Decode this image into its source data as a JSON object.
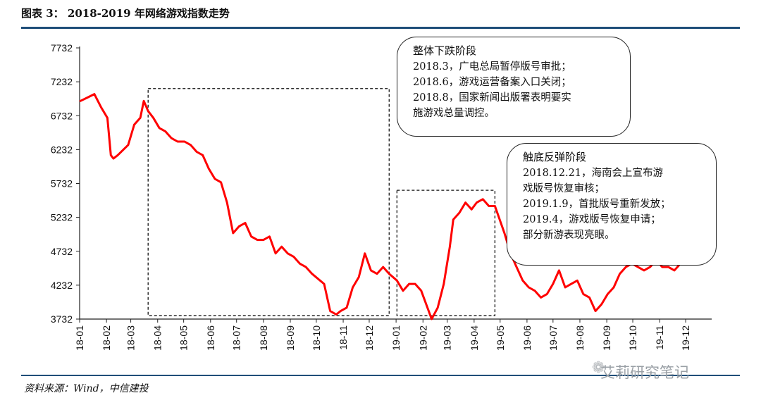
{
  "title": "图表 3：   2018-2019 年网络游戏指数走势",
  "source": "资料来源：Wind，中信建投",
  "watermark": "艾莉研究笔记",
  "colors": {
    "line": "#ff0000",
    "axis": "#222222",
    "rule": "#1f4e79"
  },
  "annotations": [
    {
      "title": "整体下跌阶段",
      "lines": [
        "2018.3，广电总局暂停版号审批；",
        "2018.6，游戏运营备案入口关闭；",
        "2018.8，国家新闻出版署表明要实",
        "施游戏总量调控。"
      ]
    },
    {
      "title": "触底反弹阶段",
      "lines": [
        "2018.12.21，海南会上宣布游",
        "戏版号恢复审核；",
        "2019.1.9，首批版号重新发放；",
        "2019.4，游戏版号恢复申请；",
        "部分新游表现亮眼。"
      ]
    }
  ],
  "chart_data": {
    "type": "line",
    "title": "",
    "xlabel": "",
    "ylabel": "",
    "ylim": [
      3732,
      7732
    ],
    "yticks": [
      3732,
      4232,
      4732,
      5232,
      5732,
      6232,
      6732,
      7232,
      7732
    ],
    "xticks": [
      "18-01",
      "18-02",
      "18-03",
      "18-04",
      "18-05",
      "18-06",
      "18-07",
      "18-08",
      "18-09",
      "18-10",
      "18-11",
      "18-12",
      "19-01",
      "19-02",
      "19-03",
      "19-04",
      "19-05",
      "19-06",
      "19-07",
      "19-08",
      "19-09",
      "19-10",
      "19-11",
      "19-12"
    ],
    "series": [
      {
        "name": "",
        "x": [
          "2018-01-02",
          "2018-01-10",
          "2018-01-18",
          "2018-01-26",
          "2018-02-02",
          "2018-02-06",
          "2018-02-09",
          "2018-02-14",
          "2018-02-26",
          "2018-03-05",
          "2018-03-12",
          "2018-03-16",
          "2018-03-21",
          "2018-03-27",
          "2018-04-03",
          "2018-04-10",
          "2018-04-17",
          "2018-04-24",
          "2018-05-02",
          "2018-05-09",
          "2018-05-16",
          "2018-05-23",
          "2018-05-30",
          "2018-06-06",
          "2018-06-13",
          "2018-06-20",
          "2018-06-27",
          "2018-07-04",
          "2018-07-11",
          "2018-07-18",
          "2018-07-25",
          "2018-08-01",
          "2018-08-08",
          "2018-08-15",
          "2018-08-22",
          "2018-08-29",
          "2018-09-05",
          "2018-09-12",
          "2018-09-19",
          "2018-09-26",
          "2018-10-10",
          "2018-10-17",
          "2018-10-24",
          "2018-10-29",
          "2018-11-05",
          "2018-11-12",
          "2018-11-19",
          "2018-11-26",
          "2018-12-03",
          "2018-12-10",
          "2018-12-17",
          "2018-12-24",
          "2019-01-02",
          "2019-01-09",
          "2019-01-16",
          "2019-01-23",
          "2019-01-30",
          "2019-02-11",
          "2019-02-18",
          "2019-02-25",
          "2019-03-04",
          "2019-03-08",
          "2019-03-15",
          "2019-03-22",
          "2019-03-29",
          "2019-04-04",
          "2019-04-11",
          "2019-04-18",
          "2019-04-25",
          "2019-05-06",
          "2019-05-13",
          "2019-05-20",
          "2019-05-27",
          "2019-06-03",
          "2019-06-10",
          "2019-06-17",
          "2019-06-24",
          "2019-07-01",
          "2019-07-08",
          "2019-07-15",
          "2019-07-22",
          "2019-07-29",
          "2019-08-05",
          "2019-08-12",
          "2019-08-19",
          "2019-08-26",
          "2019-09-02",
          "2019-09-09",
          "2019-09-16",
          "2019-09-23",
          "2019-09-30",
          "2019-10-14",
          "2019-10-21",
          "2019-10-28",
          "2019-11-04",
          "2019-11-11",
          "2019-11-18",
          "2019-11-25",
          "2019-12-02",
          "2019-12-09",
          "2019-12-16",
          "2019-12-23",
          "2019-12-31"
        ],
        "values": [
          6950,
          7000,
          7050,
          6850,
          6700,
          6150,
          6100,
          6150,
          6300,
          6600,
          6700,
          6950,
          6800,
          6700,
          6550,
          6500,
          6400,
          6350,
          6350,
          6300,
          6200,
          6150,
          5950,
          5800,
          5750,
          5450,
          5000,
          5100,
          5150,
          4950,
          4900,
          4900,
          4950,
          4700,
          4800,
          4700,
          4650,
          4550,
          4500,
          4400,
          4250,
          3850,
          3800,
          3850,
          3900,
          4200,
          4350,
          4700,
          4450,
          4400,
          4500,
          4400,
          4300,
          4150,
          4250,
          4250,
          4150,
          3732,
          3900,
          4250,
          4800,
          5200,
          5300,
          5450,
          5350,
          5450,
          5500,
          5400,
          5400,
          5000,
          4700,
          4500,
          4300,
          4200,
          4150,
          4050,
          4100,
          4250,
          4450,
          4200,
          4250,
          4300,
          4100,
          4050,
          3850,
          3950,
          4100,
          4200,
          4400,
          4500,
          4550,
          4450,
          4500,
          4600,
          4500,
          4500,
          4450,
          4550,
          4650,
          4800,
          4900,
          5100,
          5000
        ]
      }
    ],
    "boxes": [
      {
        "label": "整体下跌阶段",
        "x": [
          "2018-03-21",
          "2018-12-24"
        ],
        "y": [
          3782,
          7132
        ]
      },
      {
        "label": "触底反弹阶段",
        "x": [
          "2019-01-02",
          "2019-04-25"
        ],
        "y": [
          3782,
          5632
        ]
      }
    ]
  }
}
